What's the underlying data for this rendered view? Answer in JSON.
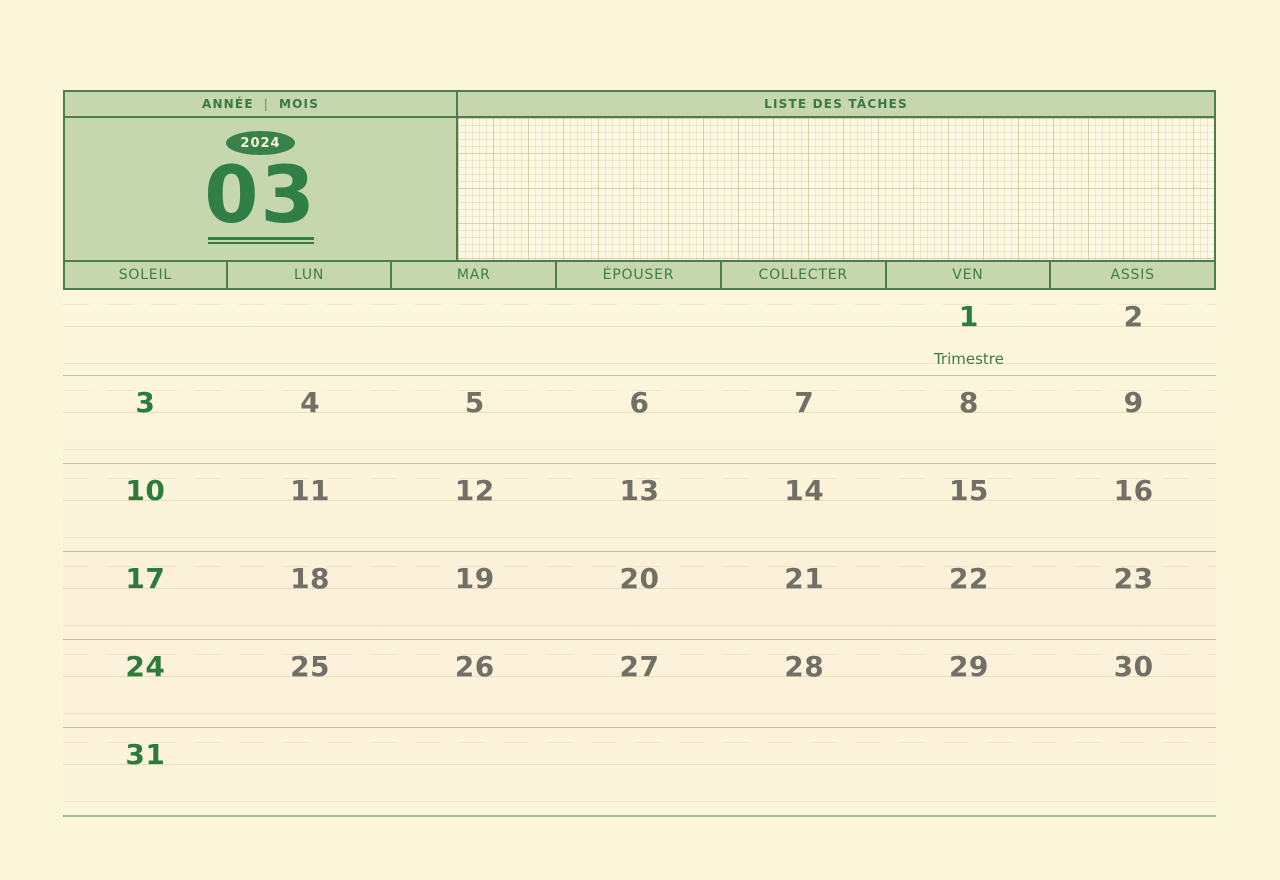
{
  "header": {
    "year_label": "ANNÉE",
    "separator": "|",
    "month_label": "MOIS",
    "tasks_label": "LISTE DES TÂCHES",
    "year_badge": "2024",
    "month_number": "03"
  },
  "weekdays": [
    "SOLEIL",
    "LUN",
    "MAR",
    "ÉPOUSER",
    "COLLECTER",
    "VEN",
    "ASSIS"
  ],
  "calendar": {
    "weeks": [
      [
        null,
        null,
        null,
        null,
        null,
        {
          "day": "1",
          "accent": true,
          "note": "Trimestre"
        },
        {
          "day": "2"
        }
      ],
      [
        {
          "day": "3",
          "accent": true
        },
        {
          "day": "4"
        },
        {
          "day": "5"
        },
        {
          "day": "6"
        },
        {
          "day": "7"
        },
        {
          "day": "8"
        },
        {
          "day": "9"
        }
      ],
      [
        {
          "day": "10",
          "accent": true
        },
        {
          "day": "11"
        },
        {
          "day": "12"
        },
        {
          "day": "13"
        },
        {
          "day": "14"
        },
        {
          "day": "15"
        },
        {
          "day": "16"
        }
      ],
      [
        {
          "day": "17",
          "accent": true
        },
        {
          "day": "18"
        },
        {
          "day": "19"
        },
        {
          "day": "20"
        },
        {
          "day": "21"
        },
        {
          "day": "22"
        },
        {
          "day": "23"
        }
      ],
      [
        {
          "day": "24",
          "accent": true
        },
        {
          "day": "25"
        },
        {
          "day": "26"
        },
        {
          "day": "27"
        },
        {
          "day": "28"
        },
        {
          "day": "29"
        },
        {
          "day": "30"
        }
      ],
      [
        {
          "day": "31",
          "accent": true
        },
        null,
        null,
        null,
        null,
        null,
        null
      ]
    ]
  },
  "colors": {
    "page_background": "#fbf6da",
    "panel_green": "#c6d6ad",
    "border_green": "#4d7d4d",
    "badge_green": "#38814b",
    "badge_text": "#f6f1d7",
    "accent_green": "#2b7b3e",
    "label_green": "#3f7c4a",
    "date_gray": "#716f66",
    "separator_line": "#b7c4a4"
  }
}
